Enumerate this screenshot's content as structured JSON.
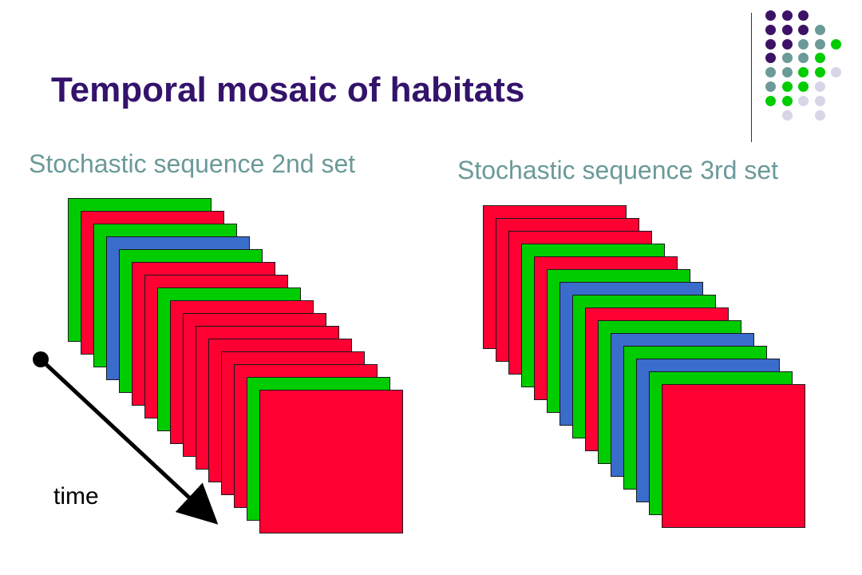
{
  "slide": {
    "title": "Temporal mosaic of habitats"
  },
  "sequences": [
    {
      "label": "Stochastic sequence 2nd set",
      "frames": [
        "green",
        "red",
        "green",
        "blue",
        "green",
        "red",
        "red",
        "green",
        "red",
        "red",
        "red",
        "red",
        "red",
        "red",
        "green",
        "red"
      ]
    },
    {
      "label": "Stochastic sequence 3rd set",
      "frames": [
        "red",
        "red",
        "red",
        "green",
        "red",
        "green",
        "blue",
        "green",
        "red",
        "green",
        "blue",
        "green",
        "blue",
        "green",
        "red"
      ]
    }
  ],
  "timeline": {
    "label": "time"
  },
  "colors": {
    "title": "#33136b",
    "subtitle": "#6b9a99",
    "red": "#ff0033",
    "green": "#00cc00",
    "blue": "#3a6ccc",
    "dot_purple": "#3d1266",
    "dot_teal": "#6b9a99",
    "dot_green": "#00cc00",
    "dot_lavender": "#d6d6e8"
  },
  "decoration": {
    "dot_grid": [
      [
        "dot_purple",
        "dot_purple",
        "dot_purple"
      ],
      [
        "dot_purple",
        "dot_purple",
        "dot_purple",
        "dot_teal"
      ],
      [
        "dot_purple",
        "dot_purple",
        "dot_teal",
        "dot_teal",
        "dot_green"
      ],
      [
        "dot_purple",
        "dot_teal",
        "dot_teal",
        "dot_green"
      ],
      [
        "dot_teal",
        "dot_teal",
        "dot_green",
        "dot_green",
        "dot_lavender"
      ],
      [
        "dot_teal",
        "dot_green",
        "dot_green",
        "dot_lavender"
      ],
      [
        "dot_green",
        "dot_green",
        "dot_lavender",
        "dot_lavender"
      ],
      [
        "",
        "dot_lavender",
        "",
        "dot_lavender"
      ]
    ]
  }
}
